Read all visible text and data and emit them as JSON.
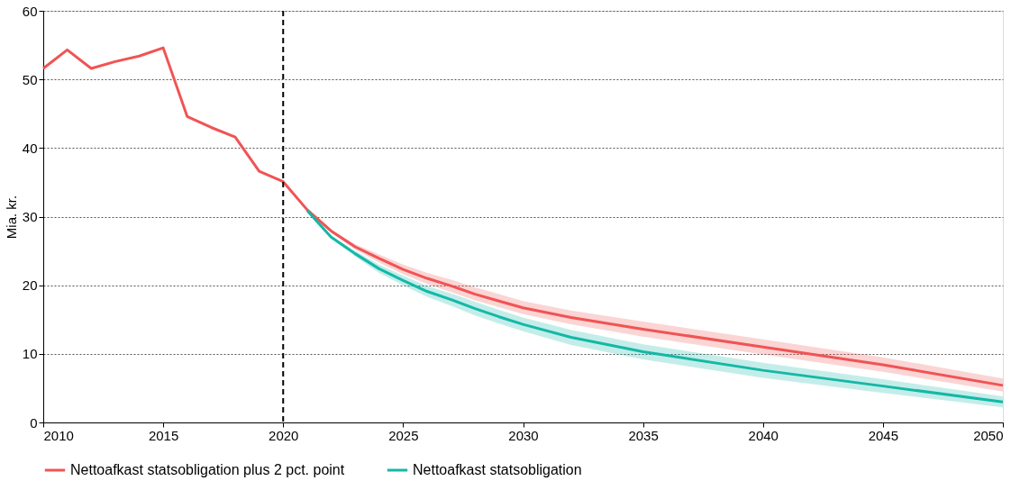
{
  "chart_data": {
    "type": "line",
    "ylabel": "Mia. kr.",
    "xlim": [
      2010,
      2050
    ],
    "xticks": [
      2010,
      2015,
      2020,
      2025,
      2030,
      2035,
      2040,
      2045,
      2050
    ],
    "ylim": [
      0,
      60
    ],
    "yticks": [
      0,
      10,
      20,
      30,
      40,
      50,
      60
    ],
    "grid": "y",
    "legend": "bottom",
    "line_style": "solid",
    "marker": "none",
    "ref_lines": [
      {
        "axis": "x",
        "value": 2020,
        "color": "#000000",
        "line_style": "dashed"
      }
    ],
    "series": [
      {
        "name": "Nettoafkast statsobligation plus 2 pct. point",
        "color": "#f05454",
        "x": [
          2010,
          2011,
          2012,
          2013,
          2014,
          2015,
          2016,
          2017,
          2018,
          2019,
          2020,
          2021,
          2022,
          2023,
          2024,
          2025,
          2026,
          2027,
          2028,
          2029,
          2030,
          2032,
          2035,
          2040,
          2045,
          2050
        ],
        "values": [
          51.6,
          54.3,
          51.6,
          52.6,
          53.4,
          54.6,
          44.6,
          43.0,
          41.6,
          36.6,
          35.1,
          31.0,
          27.9,
          25.6,
          23.9,
          22.3,
          21.0,
          19.9,
          18.7,
          17.7,
          16.7,
          15.3,
          13.6,
          11.0,
          8.4,
          5.4
        ],
        "lower": [
          null,
          null,
          null,
          null,
          null,
          null,
          null,
          null,
          null,
          null,
          null,
          31.0,
          27.7,
          25.2,
          23.3,
          21.6,
          20.2,
          19.0,
          17.8,
          16.8,
          15.8,
          14.3,
          12.5,
          9.9,
          7.4,
          4.5
        ],
        "upper": [
          null,
          null,
          null,
          null,
          null,
          null,
          null,
          null,
          null,
          null,
          null,
          31.0,
          28.1,
          26.0,
          24.5,
          23.0,
          21.8,
          20.8,
          19.7,
          18.7,
          17.7,
          16.3,
          14.7,
          12.1,
          9.5,
          6.4
        ]
      },
      {
        "name": "Nettoafkast statsobligation",
        "color": "#14b8a6",
        "x": [
          2021,
          2022,
          2023,
          2024,
          2025,
          2026,
          2027,
          2028,
          2029,
          2030,
          2032,
          2035,
          2040,
          2045,
          2050
        ],
        "values": [
          30.9,
          27.0,
          24.6,
          22.4,
          20.7,
          19.1,
          17.9,
          16.6,
          15.4,
          14.3,
          12.4,
          10.3,
          7.6,
          5.3,
          3.0
        ],
        "lower": [
          30.9,
          26.8,
          24.2,
          21.8,
          20.0,
          18.3,
          17.0,
          15.6,
          14.4,
          13.3,
          11.3,
          9.2,
          6.5,
          4.3,
          2.2
        ],
        "upper": [
          30.9,
          27.2,
          25.0,
          23.0,
          21.4,
          19.9,
          18.8,
          17.6,
          16.4,
          15.3,
          13.5,
          11.4,
          8.7,
          6.3,
          3.8
        ]
      }
    ]
  }
}
